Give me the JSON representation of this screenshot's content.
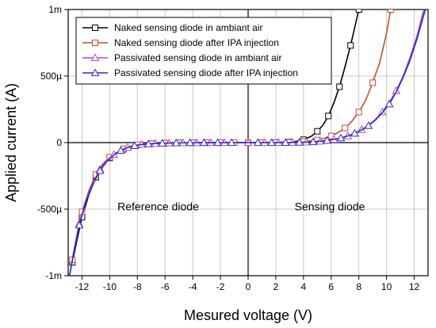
{
  "chart_data": {
    "type": "line",
    "title": "",
    "xlabel": "Mesured voltage (V)",
    "ylabel": "Applied current (A)",
    "xlim": [
      -13,
      13
    ],
    "ylim": [
      -0.001,
      0.001
    ],
    "x_ticks": [
      -12,
      -10,
      -8,
      -6,
      -4,
      -2,
      0,
      2,
      4,
      6,
      8,
      10,
      12
    ],
    "x_tick_labels": [
      "-12",
      "-10",
      "-8",
      "-6",
      "-4",
      "-2",
      "0",
      "2",
      "4",
      "6",
      "8",
      "10",
      "12"
    ],
    "y_ticks": [
      -0.001,
      -0.0005,
      0,
      0.0005,
      0.001
    ],
    "y_tick_labels": [
      "-1m",
      "-500µ",
      "0",
      "500µ",
      "1m"
    ],
    "grid": true,
    "legend_position": "top-center",
    "annotations": [
      {
        "text": "Reference diode",
        "x": -6.5,
        "y": -0.00048
      },
      {
        "text": "Sensing diode",
        "x": 5.9,
        "y": -0.00048
      }
    ],
    "series": [
      {
        "name": "Naked sensing diode in ambiant air",
        "color": "#000000",
        "marker": "square",
        "x": [
          -12.7,
          -12.4,
          -12,
          -11.5,
          -11,
          -10.5,
          -10,
          -9.5,
          -9,
          -8.5,
          -8,
          -7.5,
          -7,
          -6.5,
          -6,
          -5.5,
          -5,
          -4.5,
          -4,
          -3.5,
          -3,
          -2.5,
          -2,
          -1.5,
          -1,
          -0.5,
          0,
          0.5,
          1,
          1.5,
          2,
          2.5,
          3,
          3.5,
          4,
          4.3,
          4.6,
          5,
          5.4,
          5.8,
          6.2,
          6.6,
          7,
          7.4,
          7.8,
          8.0
        ],
        "y": [
          -0.0009,
          -0.00075,
          -0.00056,
          -0.00039,
          -0.00026,
          -0.00017,
          -0.000115,
          -8e-05,
          -5e-05,
          -3e-05,
          -1.8e-05,
          -1.2e-05,
          -8e-06,
          -6e-06,
          -4e-06,
          -3e-06,
          -2e-06,
          -1.5e-06,
          -1e-06,
          -8e-07,
          -5e-07,
          -3e-07,
          -2e-07,
          -1e-07,
          0,
          0,
          0,
          1e-07,
          3e-07,
          6e-07,
          1e-06,
          2.5e-06,
          5e-06,
          1e-05,
          2.2e-05,
          3.5e-05,
          5e-05,
          8.5e-05,
          0.00013,
          0.0002,
          0.0003,
          0.00042,
          0.00057,
          0.00073,
          0.00091,
          0.001
        ],
        "marker_indices": [
          0,
          2,
          4,
          6,
          8,
          10,
          12,
          14,
          16,
          18,
          20,
          22,
          24,
          26,
          28,
          30,
          32,
          34,
          37,
          39,
          41,
          43,
          45
        ]
      },
      {
        "name": "Naked sensing diode after IPA injection",
        "color": "#c0502a",
        "marker": "square",
        "x": [
          -12.7,
          -12.4,
          -12,
          -11.5,
          -11,
          -10.5,
          -10,
          -9.5,
          -9,
          -8.5,
          -8,
          -7.5,
          -7,
          -6.5,
          -6,
          -5.5,
          -5,
          -4.5,
          -4,
          -3.5,
          -3,
          -2.5,
          -2,
          -1.5,
          -1,
          -0.5,
          0,
          0.5,
          1,
          1.5,
          2,
          2.5,
          3,
          3.5,
          4,
          4.5,
          5,
          5.5,
          6,
          6.5,
          7,
          7.5,
          8,
          8.5,
          9,
          9.5,
          10,
          10.3
        ],
        "y": [
          -0.00088,
          -0.00072,
          -0.00052,
          -0.00036,
          -0.00024,
          -0.00016,
          -0.00011,
          -7.5e-05,
          -4.7e-05,
          -2.8e-05,
          -1.7e-05,
          -1.1e-05,
          -7.5e-06,
          -5.5e-06,
          -3.8e-06,
          -2.8e-06,
          -2e-06,
          -1.4e-06,
          -1e-06,
          -7e-07,
          -5e-07,
          -3e-07,
          -2e-07,
          -1e-07,
          0,
          0,
          0,
          1e-07,
          2e-07,
          4e-07,
          8e-07,
          1.6e-06,
          3e-06,
          5e-06,
          8e-06,
          1.3e-05,
          2e-05,
          3.2e-05,
          5e-05,
          7.5e-05,
          0.00011,
          0.00016,
          0.00023,
          0.00032,
          0.00045,
          0.0006,
          0.00082,
          0.001
        ],
        "marker_indices": [
          0,
          2,
          4,
          6,
          8,
          10,
          12,
          14,
          16,
          18,
          20,
          22,
          24,
          26,
          28,
          30,
          32,
          34,
          36,
          38,
          40,
          42,
          44,
          47
        ]
      },
      {
        "name": "Passivated sensing diode in ambiant air",
        "color": "#c040b8",
        "marker": "triangle",
        "x": [
          -12.9,
          -12.6,
          -12.2,
          -11.7,
          -11.2,
          -10.7,
          -10.2,
          -9.7,
          -9.2,
          -8.7,
          -8.2,
          -7.7,
          -7.2,
          -6.7,
          -6.2,
          -5.7,
          -5.2,
          -4.7,
          -4.2,
          -3.7,
          -3.2,
          -2.7,
          -2.2,
          -1.7,
          -1.2,
          -0.7,
          0,
          0.7,
          1.2,
          1.7,
          2.2,
          2.7,
          3.2,
          3.7,
          4.2,
          4.7,
          5.2,
          5.7,
          6.2,
          6.7,
          7.2,
          7.7,
          8.2,
          8.7,
          9.2,
          9.7,
          10.2,
          10.7,
          11.2,
          11.7,
          12.2,
          12.7
        ],
        "y": [
          -0.001,
          -0.00082,
          -0.00061,
          -0.00043,
          -0.0003,
          -0.0002,
          -0.000135,
          -9e-05,
          -5.8e-05,
          -3.6e-05,
          -2.2e-05,
          -1.4e-05,
          -9.5e-06,
          -6.5e-06,
          -4.5e-06,
          -3e-06,
          -2e-06,
          -1.5e-06,
          -1e-06,
          -7e-07,
          -5e-07,
          -3e-07,
          -2e-07,
          -1e-07,
          0,
          0,
          0,
          0,
          1e-07,
          2e-07,
          4e-07,
          7e-07,
          1.2e-06,
          2e-06,
          3.5e-06,
          6e-06,
          1e-05,
          1.6e-05,
          2.4e-05,
          3.5e-05,
          5e-05,
          7e-05,
          9.75e-05,
          0.00013,
          0.000175,
          0.00023,
          0.0003,
          0.00039,
          0.0005,
          0.00064,
          0.0008,
          0.001
        ],
        "marker_indices": [
          2,
          5,
          7,
          9,
          11,
          13,
          15,
          17,
          19,
          21,
          23,
          26,
          28,
          30,
          32,
          34,
          36,
          38,
          40,
          42,
          45,
          47
        ]
      },
      {
        "name": "Passivated sensing diode after IPA injection",
        "color": "#2a2ad8",
        "marker": "triangle",
        "x": [
          -12.9,
          -12.6,
          -12.2,
          -11.7,
          -11.2,
          -10.7,
          -10.2,
          -9.7,
          -9.2,
          -8.7,
          -8.2,
          -7.7,
          -7.2,
          -6.7,
          -6.2,
          -5.7,
          -5.2,
          -4.7,
          -4.2,
          -3.7,
          -3.2,
          -2.7,
          -2.2,
          -1.7,
          -1.2,
          -0.7,
          0,
          0.7,
          1.2,
          1.7,
          2.2,
          2.7,
          3.2,
          3.7,
          4.2,
          4.7,
          5.2,
          5.7,
          6.2,
          6.7,
          7.2,
          7.7,
          8.2,
          8.7,
          9.2,
          9.7,
          10.2,
          10.7,
          11.2,
          11.7,
          12.2,
          12.8
        ],
        "y": [
          -0.001,
          -0.00083,
          -0.00062,
          -0.00044,
          -0.00031,
          -0.00021,
          -0.00014,
          -9.3e-05,
          -6e-05,
          -3.7e-05,
          -2.3e-05,
          -1.5e-05,
          -1e-05,
          -7e-06,
          -4.8e-06,
          -3.2e-06,
          -2.1e-06,
          -1.5e-06,
          -1e-06,
          -7e-07,
          -5e-07,
          -3e-07,
          -2e-07,
          -1e-07,
          0,
          0,
          0,
          0,
          1e-07,
          2e-07,
          4e-07,
          7e-07,
          1.2e-06,
          2e-06,
          3.5e-06,
          6e-06,
          1e-05,
          1.6e-05,
          2.4e-05,
          3.5e-05,
          5e-05,
          7e-05,
          9.5e-05,
          0.000128,
          0.00017,
          0.000225,
          0.00029,
          0.00038,
          0.00049,
          0.00062,
          0.00078,
          0.001
        ],
        "marker_indices": [
          2,
          5,
          8,
          10,
          12,
          14,
          16,
          18,
          20,
          22,
          24,
          27,
          29,
          31,
          33,
          35,
          37,
          39,
          41,
          43,
          46
        ]
      }
    ]
  }
}
